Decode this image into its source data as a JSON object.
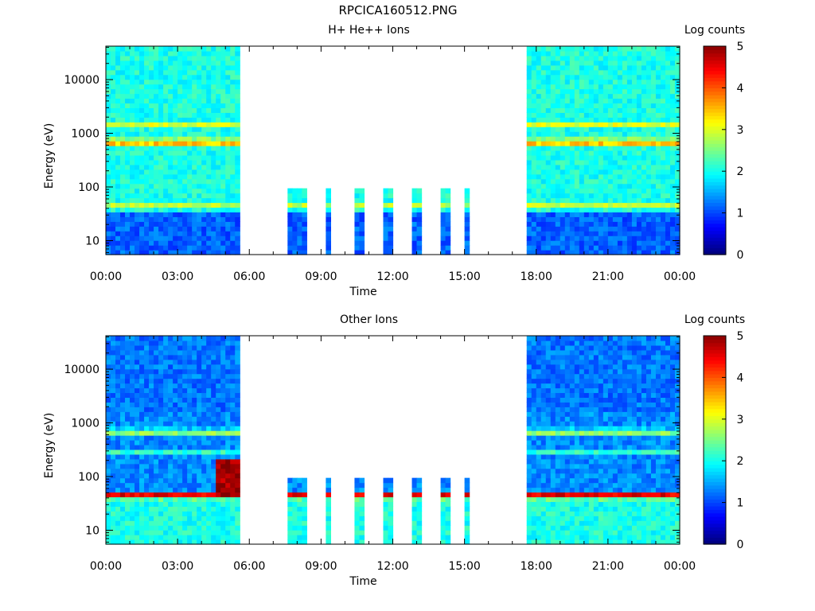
{
  "page_title": "RPCICA160512.PNG",
  "chart_data": [
    {
      "type": "heatmap",
      "title": "H+ He++ Ions",
      "xlabel": "Time",
      "ylabel": "Energy (eV)",
      "colorbar_label": "Log counts",
      "colorbar_ticks": [
        "0",
        "1",
        "2",
        "3",
        "4",
        "5"
      ],
      "clim": [
        0,
        5
      ],
      "yscale": "log",
      "ylim": [
        5.5,
        42000
      ],
      "xlim_hours": [
        0,
        24
      ],
      "x_ticks": [
        "00:00",
        "03:00",
        "06:00",
        "09:00",
        "12:00",
        "15:00",
        "18:00",
        "21:00",
        "00:00"
      ],
      "y_ticks": [
        "10",
        "100",
        "1000",
        "10000"
      ],
      "data_gap_hours": [
        5.6,
        17.6
      ],
      "bursts_hours": [
        [
          7.6,
          8.4
        ],
        [
          9.2,
          9.4
        ],
        [
          10.4,
          10.7
        ],
        [
          11.6,
          11.9
        ],
        [
          12.8,
          13.1
        ],
        [
          14.0,
          14.3
        ],
        [
          15.05,
          15.15
        ]
      ],
      "bands": {
        "background_level": 2.0,
        "low_energy_level": 1.1,
        "primary_peak_eV": 700,
        "primary_peak_level": 3.8,
        "secondary_peak_eV": 1500,
        "secondary_peak_level": 3.0,
        "low_peak_eV": 45,
        "low_peak_level": 2.9
      }
    },
    {
      "type": "heatmap",
      "title": "Other Ions",
      "xlabel": "Time",
      "ylabel": "Energy (eV)",
      "colorbar_label": "Log counts",
      "colorbar_ticks": [
        "0",
        "1",
        "2",
        "3",
        "4",
        "5"
      ],
      "clim": [
        0,
        5
      ],
      "yscale": "log",
      "ylim": [
        5.5,
        42000
      ],
      "xlim_hours": [
        0,
        24
      ],
      "x_ticks": [
        "00:00",
        "03:00",
        "06:00",
        "09:00",
        "12:00",
        "15:00",
        "18:00",
        "21:00",
        "00:00"
      ],
      "y_ticks": [
        "10",
        "100",
        "1000",
        "10000"
      ],
      "data_gap_hours": [
        5.6,
        17.6
      ],
      "bursts_hours": [
        [
          7.6,
          8.4
        ],
        [
          9.2,
          9.4
        ],
        [
          10.4,
          10.7
        ],
        [
          11.6,
          11.9
        ],
        [
          12.8,
          13.1
        ],
        [
          14.0,
          14.3
        ],
        [
          15.05,
          15.15
        ]
      ],
      "bands": {
        "background_level": 1.3,
        "low_energy_level": 2.0,
        "primary_peak_eV": 45,
        "primary_peak_level": 4.6,
        "secondary_peak_eV": 700,
        "secondary_peak_level": 3.1,
        "low_peak_eV": 300,
        "low_peak_level": 2.2
      }
    }
  ]
}
